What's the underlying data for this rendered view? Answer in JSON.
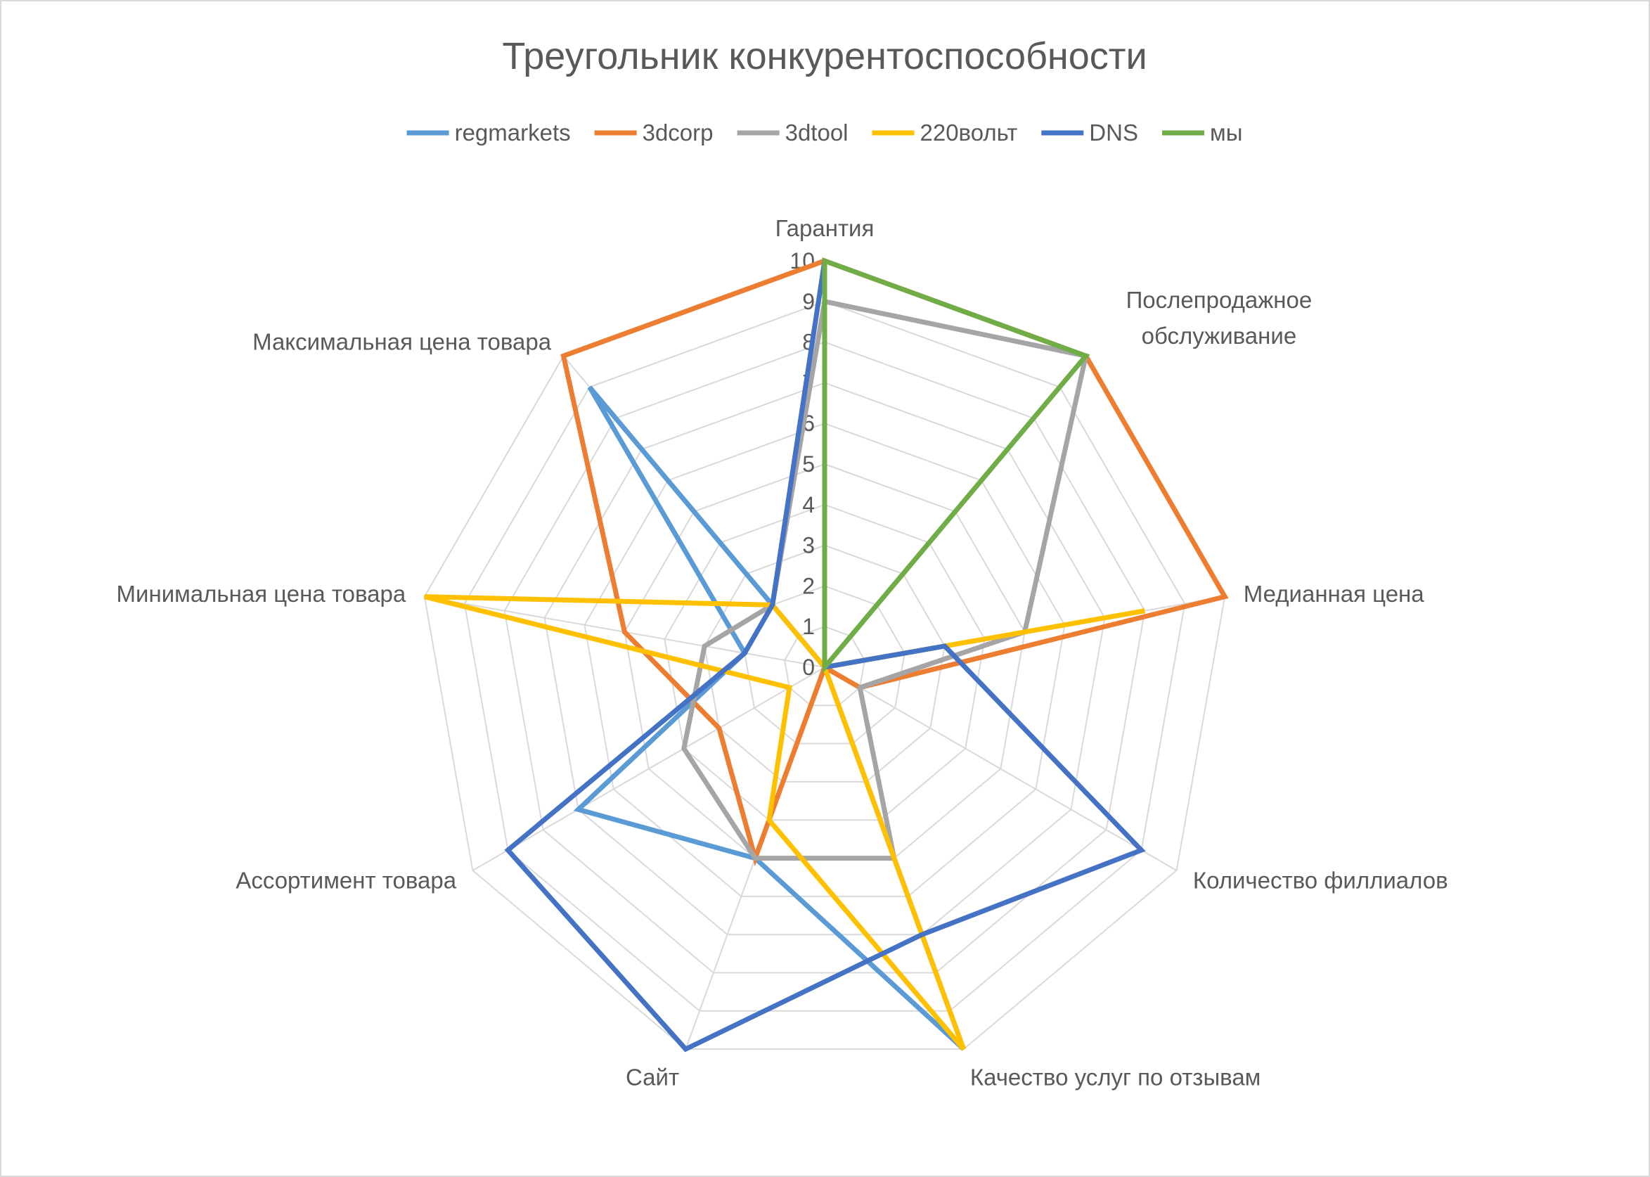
{
  "chart_data": {
    "type": "radar",
    "title": "Треугольник конкурентоспособности",
    "categories": [
      [
        "Гарантия"
      ],
      [
        "Послепродажное",
        "обслуживание"
      ],
      [
        "Медианная цена"
      ],
      [
        "Количество филлиалов"
      ],
      [
        "Качество услуг по отзывам"
      ],
      [
        "Сайт"
      ],
      [
        "Ассортимент товара"
      ],
      [
        "Минимальная цена товара"
      ],
      [
        "Максимальная цена товара"
      ]
    ],
    "rlim": [
      0,
      10
    ],
    "ticks": [
      "0",
      "1",
      "2",
      "3",
      "4",
      "5",
      "6",
      "7",
      "8",
      "9",
      "10"
    ],
    "grid": true,
    "legend": "top",
    "series": [
      {
        "name": "regmarkets",
        "color": "#5b9bd5",
        "values": [
          0,
          0,
          0,
          0,
          10,
          5,
          7,
          2,
          9
        ]
      },
      {
        "name": "3dcorp",
        "color": "#ed7d31",
        "values": [
          10,
          10,
          10,
          1,
          0,
          5,
          3,
          5,
          10
        ]
      },
      {
        "name": "3dtool",
        "color": "#a5a5a5",
        "values": [
          9,
          10,
          5,
          1,
          5,
          5,
          4,
          3,
          2
        ]
      },
      {
        "name": "220вольт",
        "color": "#ffc000",
        "values": [
          0,
          0,
          8,
          0,
          10,
          4,
          1,
          10,
          2
        ]
      },
      {
        "name": "DNS",
        "color": "#4472c4",
        "values": [
          10,
          0,
          3,
          9,
          7,
          10,
          9,
          2,
          2
        ]
      },
      {
        "name": "мы",
        "color": "#70ad47",
        "values": [
          10,
          10,
          0,
          0,
          0,
          0,
          0,
          0,
          0
        ]
      }
    ]
  }
}
